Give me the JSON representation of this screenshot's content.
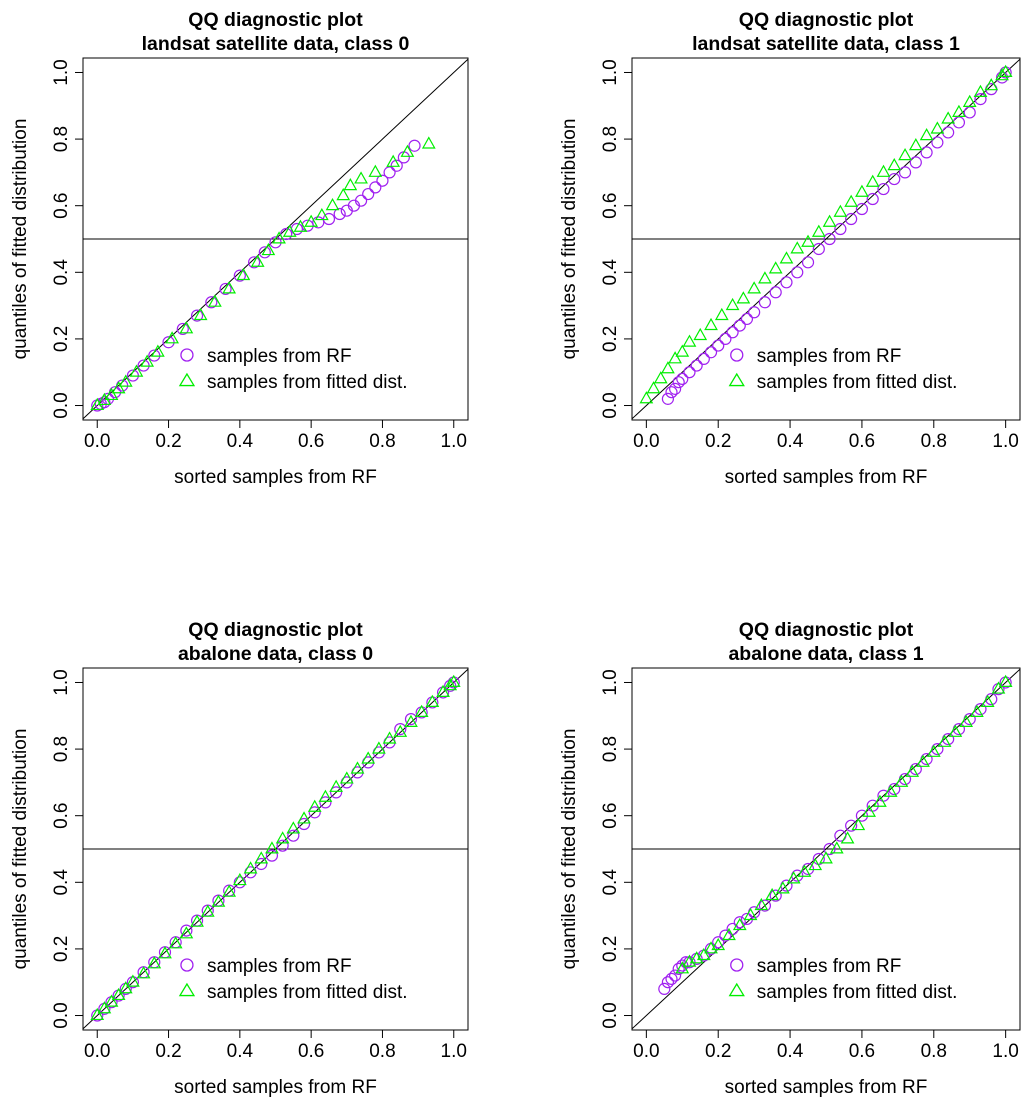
{
  "chart_data": [
    {
      "type": "scatter",
      "title": "QQ diagnostic plot",
      "subtitle": "landsat satellite data, class 0",
      "xlabel": "sorted samples from RF",
      "ylabel": "quantiles of fitted distribution",
      "xlim": [
        0,
        1
      ],
      "ylim": [
        0,
        1
      ],
      "xticks": [
        "0.0",
        "0.2",
        "0.4",
        "0.6",
        "0.8",
        "1.0"
      ],
      "yticks": [
        "0.0",
        "0.2",
        "0.4",
        "0.6",
        "0.8",
        "1.0"
      ],
      "reference_lines": [
        "y = x",
        "y = 0.5"
      ],
      "legend": {
        "position": "bottom-right"
      },
      "series": [
        {
          "name": "samples from RF",
          "marker": "circle",
          "color": "#a020f0",
          "x": [
            0.0,
            0.01,
            0.02,
            0.03,
            0.05,
            0.07,
            0.1,
            0.13,
            0.16,
            0.2,
            0.24,
            0.28,
            0.32,
            0.36,
            0.4,
            0.44,
            0.47,
            0.5,
            0.53,
            0.56,
            0.59,
            0.62,
            0.65,
            0.68,
            0.7,
            0.72,
            0.74,
            0.76,
            0.78,
            0.8,
            0.82,
            0.84,
            0.86,
            0.89
          ],
          "y": [
            0.0,
            0.005,
            0.01,
            0.02,
            0.04,
            0.06,
            0.09,
            0.12,
            0.15,
            0.19,
            0.23,
            0.27,
            0.31,
            0.35,
            0.39,
            0.43,
            0.46,
            0.49,
            0.515,
            0.53,
            0.54,
            0.55,
            0.56,
            0.575,
            0.585,
            0.6,
            0.615,
            0.635,
            0.655,
            0.675,
            0.7,
            0.72,
            0.745,
            0.78
          ]
        },
        {
          "name": "samples from fitted dist.",
          "marker": "triangle",
          "color": "#00ee00",
          "x": [
            0.0,
            0.02,
            0.04,
            0.06,
            0.08,
            0.11,
            0.14,
            0.17,
            0.21,
            0.25,
            0.29,
            0.33,
            0.37,
            0.41,
            0.45,
            0.48,
            0.51,
            0.54,
            0.57,
            0.6,
            0.63,
            0.66,
            0.69,
            0.71,
            0.74,
            0.78,
            0.83,
            0.87,
            0.93
          ],
          "y": [
            0.0,
            0.015,
            0.03,
            0.05,
            0.07,
            0.1,
            0.13,
            0.16,
            0.2,
            0.23,
            0.27,
            0.31,
            0.35,
            0.39,
            0.43,
            0.465,
            0.5,
            0.52,
            0.535,
            0.55,
            0.57,
            0.6,
            0.63,
            0.66,
            0.68,
            0.7,
            0.73,
            0.76,
            0.785
          ]
        }
      ]
    },
    {
      "type": "scatter",
      "title": "QQ diagnostic plot",
      "subtitle": "landsat satellite data, class 1",
      "xlabel": "sorted samples from RF",
      "ylabel": "quantiles of fitted distribution",
      "xlim": [
        0,
        1
      ],
      "ylim": [
        0,
        1
      ],
      "xticks": [
        "0.0",
        "0.2",
        "0.4",
        "0.6",
        "0.8",
        "1.0"
      ],
      "yticks": [
        "0.0",
        "0.2",
        "0.4",
        "0.6",
        "0.8",
        "1.0"
      ],
      "reference_lines": [
        "y = x",
        "y = 0.5"
      ],
      "legend": {
        "position": "bottom-right"
      },
      "series": [
        {
          "name": "samples from RF",
          "marker": "circle",
          "color": "#a020f0",
          "x": [
            0.06,
            0.07,
            0.08,
            0.09,
            0.1,
            0.12,
            0.14,
            0.16,
            0.18,
            0.2,
            0.22,
            0.24,
            0.26,
            0.28,
            0.3,
            0.33,
            0.36,
            0.39,
            0.42,
            0.45,
            0.48,
            0.51,
            0.54,
            0.57,
            0.6,
            0.63,
            0.66,
            0.69,
            0.72,
            0.75,
            0.78,
            0.81,
            0.84,
            0.87,
            0.9,
            0.93,
            0.96,
            0.99,
            1.0
          ],
          "y": [
            0.02,
            0.04,
            0.05,
            0.07,
            0.08,
            0.1,
            0.12,
            0.14,
            0.16,
            0.18,
            0.2,
            0.22,
            0.24,
            0.26,
            0.28,
            0.31,
            0.34,
            0.37,
            0.4,
            0.43,
            0.47,
            0.5,
            0.53,
            0.56,
            0.59,
            0.62,
            0.65,
            0.68,
            0.7,
            0.73,
            0.76,
            0.79,
            0.82,
            0.85,
            0.88,
            0.92,
            0.95,
            0.985,
            1.0
          ]
        },
        {
          "name": "samples from fitted dist.",
          "marker": "triangle",
          "color": "#00ee00",
          "x": [
            0.0,
            0.02,
            0.04,
            0.06,
            0.08,
            0.1,
            0.12,
            0.15,
            0.18,
            0.21,
            0.24,
            0.27,
            0.3,
            0.33,
            0.36,
            0.39,
            0.42,
            0.45,
            0.48,
            0.51,
            0.54,
            0.57,
            0.6,
            0.63,
            0.66,
            0.69,
            0.72,
            0.75,
            0.78,
            0.81,
            0.84,
            0.87,
            0.9,
            0.93,
            0.96,
            0.99,
            1.0
          ],
          "y": [
            0.02,
            0.05,
            0.08,
            0.11,
            0.14,
            0.16,
            0.19,
            0.21,
            0.24,
            0.27,
            0.3,
            0.32,
            0.35,
            0.38,
            0.41,
            0.44,
            0.47,
            0.49,
            0.52,
            0.55,
            0.58,
            0.61,
            0.64,
            0.67,
            0.7,
            0.72,
            0.75,
            0.78,
            0.81,
            0.83,
            0.86,
            0.88,
            0.91,
            0.94,
            0.96,
            0.99,
            1.0
          ]
        }
      ]
    },
    {
      "type": "scatter",
      "title": "QQ diagnostic plot",
      "subtitle": "abalone data, class 0",
      "xlabel": "sorted samples from RF",
      "ylabel": "quantiles of fitted distribution",
      "xlim": [
        0,
        1
      ],
      "ylim": [
        0,
        1
      ],
      "xticks": [
        "0.0",
        "0.2",
        "0.4",
        "0.6",
        "0.8",
        "1.0"
      ],
      "yticks": [
        "0.0",
        "0.2",
        "0.4",
        "0.6",
        "0.8",
        "1.0"
      ],
      "reference_lines": [
        "y = x",
        "y = 0.5"
      ],
      "legend": {
        "position": "bottom-right"
      },
      "series": [
        {
          "name": "samples from RF",
          "marker": "circle",
          "color": "#a020f0",
          "x": [
            0.0,
            0.02,
            0.04,
            0.06,
            0.08,
            0.1,
            0.13,
            0.16,
            0.19,
            0.22,
            0.25,
            0.28,
            0.31,
            0.34,
            0.37,
            0.4,
            0.43,
            0.46,
            0.49,
            0.52,
            0.55,
            0.58,
            0.61,
            0.64,
            0.67,
            0.7,
            0.73,
            0.76,
            0.79,
            0.82,
            0.85,
            0.88,
            0.91,
            0.94,
            0.97,
            0.99,
            1.0
          ],
          "y": [
            0.0,
            0.02,
            0.04,
            0.06,
            0.08,
            0.1,
            0.13,
            0.16,
            0.19,
            0.22,
            0.255,
            0.285,
            0.315,
            0.345,
            0.375,
            0.4,
            0.43,
            0.455,
            0.48,
            0.51,
            0.54,
            0.575,
            0.61,
            0.64,
            0.67,
            0.7,
            0.73,
            0.76,
            0.79,
            0.82,
            0.86,
            0.89,
            0.91,
            0.94,
            0.97,
            0.99,
            1.0
          ]
        },
        {
          "name": "samples from fitted dist.",
          "marker": "triangle",
          "color": "#00ee00",
          "x": [
            0.0,
            0.02,
            0.04,
            0.06,
            0.08,
            0.1,
            0.13,
            0.16,
            0.19,
            0.22,
            0.25,
            0.28,
            0.31,
            0.34,
            0.37,
            0.4,
            0.43,
            0.46,
            0.49,
            0.52,
            0.55,
            0.58,
            0.61,
            0.64,
            0.67,
            0.7,
            0.73,
            0.76,
            0.79,
            0.82,
            0.85,
            0.88,
            0.91,
            0.94,
            0.97,
            0.99,
            1.0
          ],
          "y": [
            0.0,
            0.02,
            0.04,
            0.06,
            0.08,
            0.1,
            0.125,
            0.155,
            0.185,
            0.215,
            0.245,
            0.28,
            0.31,
            0.34,
            0.37,
            0.405,
            0.44,
            0.47,
            0.5,
            0.53,
            0.56,
            0.59,
            0.625,
            0.655,
            0.685,
            0.71,
            0.74,
            0.77,
            0.8,
            0.83,
            0.85,
            0.88,
            0.91,
            0.94,
            0.97,
            0.99,
            1.0
          ]
        }
      ]
    },
    {
      "type": "scatter",
      "title": "QQ diagnostic plot",
      "subtitle": "abalone data, class 1",
      "xlabel": "sorted samples from RF",
      "ylabel": "quantiles of fitted distribution",
      "xlim": [
        0,
        1
      ],
      "ylim": [
        0,
        1
      ],
      "xticks": [
        "0.0",
        "0.2",
        "0.4",
        "0.6",
        "0.8",
        "1.0"
      ],
      "yticks": [
        "0.0",
        "0.2",
        "0.4",
        "0.6",
        "0.8",
        "1.0"
      ],
      "reference_lines": [
        "y = x",
        "y = 0.5"
      ],
      "legend": {
        "position": "bottom-right"
      },
      "series": [
        {
          "name": "samples from RF",
          "marker": "circle",
          "color": "#a020f0",
          "x": [
            0.05,
            0.06,
            0.07,
            0.08,
            0.09,
            0.1,
            0.11,
            0.12,
            0.14,
            0.16,
            0.18,
            0.2,
            0.22,
            0.24,
            0.26,
            0.28,
            0.3,
            0.33,
            0.36,
            0.39,
            0.42,
            0.45,
            0.48,
            0.51,
            0.54,
            0.57,
            0.6,
            0.63,
            0.66,
            0.69,
            0.72,
            0.75,
            0.78,
            0.81,
            0.84,
            0.87,
            0.9,
            0.93,
            0.96,
            0.98,
            1.0
          ],
          "y": [
            0.08,
            0.1,
            0.11,
            0.12,
            0.14,
            0.15,
            0.16,
            0.16,
            0.17,
            0.18,
            0.2,
            0.22,
            0.24,
            0.26,
            0.28,
            0.29,
            0.31,
            0.33,
            0.36,
            0.39,
            0.42,
            0.44,
            0.47,
            0.5,
            0.54,
            0.57,
            0.6,
            0.63,
            0.66,
            0.68,
            0.71,
            0.74,
            0.77,
            0.8,
            0.83,
            0.86,
            0.89,
            0.92,
            0.95,
            0.98,
            1.0
          ]
        },
        {
          "name": "samples from fitted dist.",
          "marker": "triangle",
          "color": "#00ee00",
          "x": [
            0.1,
            0.12,
            0.14,
            0.16,
            0.18,
            0.2,
            0.23,
            0.26,
            0.29,
            0.32,
            0.35,
            0.38,
            0.41,
            0.44,
            0.47,
            0.5,
            0.53,
            0.56,
            0.59,
            0.62,
            0.65,
            0.68,
            0.71,
            0.74,
            0.77,
            0.8,
            0.83,
            0.86,
            0.89,
            0.92,
            0.95,
            0.98,
            1.0
          ],
          "y": [
            0.14,
            0.16,
            0.17,
            0.18,
            0.2,
            0.21,
            0.24,
            0.27,
            0.3,
            0.33,
            0.36,
            0.38,
            0.41,
            0.43,
            0.45,
            0.47,
            0.5,
            0.53,
            0.57,
            0.61,
            0.64,
            0.67,
            0.7,
            0.73,
            0.76,
            0.79,
            0.82,
            0.85,
            0.88,
            0.91,
            0.94,
            0.98,
            1.0
          ]
        }
      ]
    }
  ]
}
